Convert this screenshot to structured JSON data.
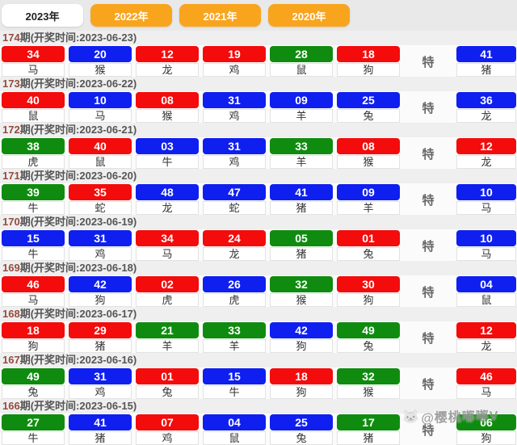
{
  "tabs": [
    {
      "label": "2023年",
      "active": true
    },
    {
      "label": "2022年",
      "active": false
    },
    {
      "label": "2021年",
      "active": false
    },
    {
      "label": "2020年",
      "active": false
    }
  ],
  "colors": {
    "red": "#f40b0b",
    "blue": "#0f1ff0",
    "green": "#0f8c0f",
    "tab_orange": "#f9a41d"
  },
  "special_label": "特",
  "draws": [
    {
      "period": "174",
      "header_rest": "期(开奖时间:2023-06-23)",
      "balls": [
        {
          "num": "34",
          "color": "red",
          "zodiac": "马"
        },
        {
          "num": "20",
          "color": "blue",
          "zodiac": "猴"
        },
        {
          "num": "12",
          "color": "red",
          "zodiac": "龙"
        },
        {
          "num": "19",
          "color": "red",
          "zodiac": "鸡"
        },
        {
          "num": "28",
          "color": "green",
          "zodiac": "鼠"
        },
        {
          "num": "18",
          "color": "red",
          "zodiac": "狗"
        }
      ],
      "special": {
        "num": "41",
        "color": "blue",
        "zodiac": "猪"
      }
    },
    {
      "period": "173",
      "header_rest": "期(开奖时间:2023-06-22)",
      "balls": [
        {
          "num": "40",
          "color": "red",
          "zodiac": "鼠"
        },
        {
          "num": "10",
          "color": "blue",
          "zodiac": "马"
        },
        {
          "num": "08",
          "color": "red",
          "zodiac": "猴"
        },
        {
          "num": "31",
          "color": "blue",
          "zodiac": "鸡"
        },
        {
          "num": "09",
          "color": "blue",
          "zodiac": "羊"
        },
        {
          "num": "25",
          "color": "blue",
          "zodiac": "兔"
        }
      ],
      "special": {
        "num": "36",
        "color": "blue",
        "zodiac": "龙"
      }
    },
    {
      "period": "172",
      "header_rest": "期(开奖时间:2023-06-21)",
      "balls": [
        {
          "num": "38",
          "color": "green",
          "zodiac": "虎"
        },
        {
          "num": "40",
          "color": "red",
          "zodiac": "鼠"
        },
        {
          "num": "03",
          "color": "blue",
          "zodiac": "牛"
        },
        {
          "num": "31",
          "color": "blue",
          "zodiac": "鸡"
        },
        {
          "num": "33",
          "color": "green",
          "zodiac": "羊"
        },
        {
          "num": "08",
          "color": "red",
          "zodiac": "猴"
        }
      ],
      "special": {
        "num": "12",
        "color": "red",
        "zodiac": "龙"
      }
    },
    {
      "period": "171",
      "header_rest": "期(开奖时间:2023-06-20)",
      "balls": [
        {
          "num": "39",
          "color": "green",
          "zodiac": "牛"
        },
        {
          "num": "35",
          "color": "red",
          "zodiac": "蛇"
        },
        {
          "num": "48",
          "color": "blue",
          "zodiac": "龙"
        },
        {
          "num": "47",
          "color": "blue",
          "zodiac": "蛇"
        },
        {
          "num": "41",
          "color": "blue",
          "zodiac": "猪"
        },
        {
          "num": "09",
          "color": "blue",
          "zodiac": "羊"
        }
      ],
      "special": {
        "num": "10",
        "color": "blue",
        "zodiac": "马"
      }
    },
    {
      "period": "170",
      "header_rest": "期(开奖时间:2023-06-19)",
      "balls": [
        {
          "num": "15",
          "color": "blue",
          "zodiac": "牛"
        },
        {
          "num": "31",
          "color": "blue",
          "zodiac": "鸡"
        },
        {
          "num": "34",
          "color": "red",
          "zodiac": "马"
        },
        {
          "num": "24",
          "color": "red",
          "zodiac": "龙"
        },
        {
          "num": "05",
          "color": "green",
          "zodiac": "猪"
        },
        {
          "num": "01",
          "color": "red",
          "zodiac": "兔"
        }
      ],
      "special": {
        "num": "10",
        "color": "blue",
        "zodiac": "马"
      }
    },
    {
      "period": "169",
      "header_rest": "期(开奖时间:2023-06-18)",
      "balls": [
        {
          "num": "46",
          "color": "red",
          "zodiac": "马"
        },
        {
          "num": "42",
          "color": "blue",
          "zodiac": "狗"
        },
        {
          "num": "02",
          "color": "red",
          "zodiac": "虎"
        },
        {
          "num": "26",
          "color": "blue",
          "zodiac": "虎"
        },
        {
          "num": "32",
          "color": "green",
          "zodiac": "猴"
        },
        {
          "num": "30",
          "color": "red",
          "zodiac": "狗"
        }
      ],
      "special": {
        "num": "04",
        "color": "blue",
        "zodiac": "鼠"
      }
    },
    {
      "period": "168",
      "header_rest": "期(开奖时间:2023-06-17)",
      "balls": [
        {
          "num": "18",
          "color": "red",
          "zodiac": "狗"
        },
        {
          "num": "29",
          "color": "red",
          "zodiac": "猪"
        },
        {
          "num": "21",
          "color": "green",
          "zodiac": "羊"
        },
        {
          "num": "33",
          "color": "green",
          "zodiac": "羊"
        },
        {
          "num": "42",
          "color": "blue",
          "zodiac": "狗"
        },
        {
          "num": "49",
          "color": "green",
          "zodiac": "兔"
        }
      ],
      "special": {
        "num": "12",
        "color": "red",
        "zodiac": "龙"
      }
    },
    {
      "period": "167",
      "header_rest": "期(开奖时间:2023-06-16)",
      "balls": [
        {
          "num": "49",
          "color": "green",
          "zodiac": "兔"
        },
        {
          "num": "31",
          "color": "blue",
          "zodiac": "鸡"
        },
        {
          "num": "01",
          "color": "red",
          "zodiac": "兔"
        },
        {
          "num": "15",
          "color": "blue",
          "zodiac": "牛"
        },
        {
          "num": "18",
          "color": "red",
          "zodiac": "狗"
        },
        {
          "num": "32",
          "color": "green",
          "zodiac": "猴"
        }
      ],
      "special": {
        "num": "46",
        "color": "red",
        "zodiac": "马"
      }
    },
    {
      "period": "166",
      "header_rest": "期(开奖时间:2023-06-15)",
      "balls": [
        {
          "num": "27",
          "color": "green",
          "zodiac": "牛"
        },
        {
          "num": "41",
          "color": "blue",
          "zodiac": "猪"
        },
        {
          "num": "07",
          "color": "red",
          "zodiac": "鸡"
        },
        {
          "num": "04",
          "color": "blue",
          "zodiac": "鼠"
        },
        {
          "num": "25",
          "color": "blue",
          "zodiac": "兔"
        },
        {
          "num": "17",
          "color": "green",
          "zodiac": "猪"
        }
      ],
      "special": {
        "num": "06",
        "color": "green",
        "zodiac": "狗"
      }
    }
  ],
  "watermark": {
    "icon": "mascot-icon",
    "text": "@樱桃嘟嘟V"
  }
}
